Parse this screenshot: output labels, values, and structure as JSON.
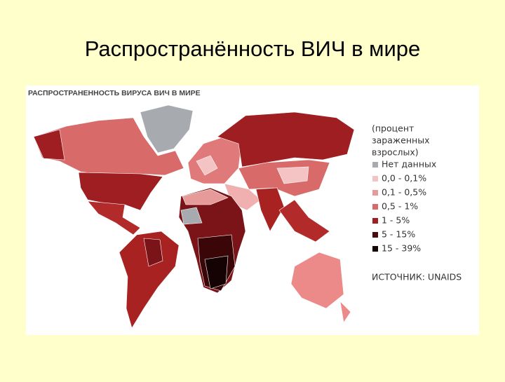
{
  "slide_title": "Распространённость ВИЧ в мире",
  "map": {
    "title": "РАСПРОСТРАНЕННОСТЬ ВИРУСА ВИЧ В МИРЕ",
    "legend_title": [
      "(процент",
      "зараженных",
      "взрослых)"
    ],
    "legend": [
      {
        "label": "Нет данных",
        "color": "#a7abb0"
      },
      {
        "label": "0,0 - 0,1%",
        "color": "#f4c4c4"
      },
      {
        "label": "0,1 - 0,5%",
        "color": "#e79a9a"
      },
      {
        "label": "0,5 - 1%",
        "color": "#d86a6a"
      },
      {
        "label": "1 - 5%",
        "color": "#9e1e22"
      },
      {
        "label": "5 - 15%",
        "color": "#4a0a0c"
      },
      {
        "label": "15 - 39%",
        "color": "#150203"
      }
    ],
    "source": "ИСТОЧНИК: UNAIDS"
  }
}
